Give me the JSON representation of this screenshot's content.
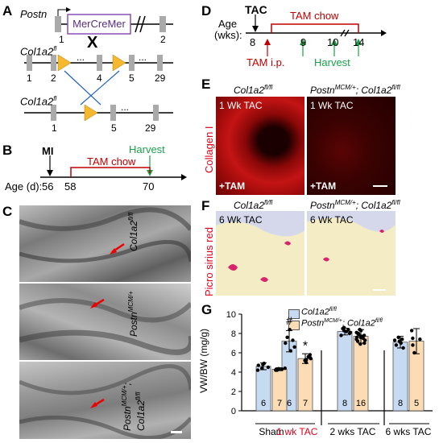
{
  "panels": {
    "A": {
      "label": "A",
      "gene_postn": "Postn",
      "cassette": "MerCreMer",
      "cross": "X",
      "allele1": "Col1a2",
      "allele1_sup": "fl",
      "allele2": "Col1a2",
      "allele2_sup": "fl",
      "exon_postn_1": "1",
      "exon_postn_2": "2",
      "exons_top": [
        "1",
        "2",
        "4",
        "5",
        "29"
      ],
      "exons_bottom": [
        "1",
        "5",
        "29"
      ],
      "dots": "..."
    },
    "B": {
      "label": "B",
      "mi": "MI",
      "harvest": "Harvest",
      "tam": "TAM chow",
      "age_label": "Age (d):",
      "days": [
        "56",
        "58",
        "70"
      ]
    },
    "C": {
      "label": "C",
      "rows": [
        {
          "g1": "Col1a2",
          "g1_sup": "fl/fl",
          "g2": "",
          "g2_sup": ""
        },
        {
          "g1": "Postn",
          "g1_sup": "MCM/+",
          "g2": "",
          "g2_sup": ""
        },
        {
          "g1": "Postn",
          "g1_sup": "MCM/+",
          "g2": "Col1a2",
          "g2_sup": "fl/fl"
        }
      ]
    },
    "D": {
      "label": "D",
      "tac": "TAC",
      "tam_chow": "TAM chow",
      "age_label": "Age",
      "age_unit": "(wks):",
      "weeks": [
        "8",
        "9",
        "10",
        "14"
      ],
      "tam_ip": "TAM i.p.",
      "harvest": "Harvest"
    },
    "E": {
      "label": "E",
      "col1_title": "Col1a2",
      "col1_sup": "fl/fl",
      "col2_title_a": "Postn",
      "col2_sup_a": "MCM/+",
      "col2_title_b": "; Col1a2",
      "col2_sup_b": "fl/fl",
      "side_label": "Collagen I",
      "timepoint": "1 Wk TAC",
      "treatment": "+TAM"
    },
    "F": {
      "label": "F",
      "col1_title": "Col1a2",
      "col1_sup": "fl/fl",
      "col2_title_a": "Postn",
      "col2_sup_a": "MCM/+",
      "col2_title_b": "; Col1a2",
      "col2_sup_b": "fl/fl",
      "side_label": "Picro sirius red",
      "timepoint": "6 Wk TAC"
    },
    "G": {
      "label": "G",
      "legend": [
        {
          "name": "Col1a2",
          "sup": "fl/fl",
          "color": "#c6daf2"
        },
        {
          "name": "Postn",
          "sup": "MCM/+",
          "name2": "; Col1a2",
          "sup2": "fl/fl",
          "color": "#fbdcb4"
        }
      ],
      "significance": [
        "#",
        "*"
      ]
    }
  },
  "chart_data": {
    "type": "bar",
    "ylabel": "VW/BW (mg/g)",
    "ylim": [
      0,
      10
    ],
    "yticks": [
      0,
      2,
      4,
      6,
      8,
      10
    ],
    "groups": [
      "Sham",
      "1 wk TAC",
      "2 wks TAC",
      "6 wks TAC"
    ],
    "group_colors": [
      "#000000",
      "#e2001a",
      "#000000",
      "#000000"
    ],
    "series": [
      {
        "name": "Col1a2 fl/fl",
        "color": "#c6daf2",
        "values": [
          4.6,
          7.2,
          8.2,
          7.1
        ],
        "errors": [
          0.35,
          1.1,
          0.35,
          0.6
        ],
        "n": [
          "6",
          "6",
          "8",
          "8"
        ]
      },
      {
        "name": "Postn MCM/+; Col1a2 fl/fl",
        "color": "#fbdcb4",
        "values": [
          4.3,
          5.4,
          7.7,
          7.2
        ],
        "errors": [
          0.15,
          0.5,
          0.7,
          1.3
        ],
        "n": [
          "7",
          "7",
          "16",
          "5"
        ]
      }
    ],
    "points": [
      [
        [
          4.2,
          4.5,
          4.7,
          4.9,
          4.4,
          4.8
        ],
        [
          6.2,
          7.0,
          7.6,
          8.4,
          6.6,
          7.3
        ],
        [
          7.8,
          8.1,
          8.4,
          8.6,
          8.0,
          8.3,
          8.2,
          8.5
        ],
        [
          6.5,
          7.0,
          7.4,
          7.2,
          6.8,
          7.6,
          7.1,
          7.3
        ]
      ],
      [
        [
          4.2,
          4.3,
          4.4,
          4.3,
          4.2,
          4.35,
          4.3
        ],
        [
          5.0,
          5.4,
          5.8,
          5.2,
          5.6,
          5.3,
          5.5
        ],
        [
          6.9,
          7.2,
          7.5,
          7.8,
          8.0,
          8.3,
          7.6,
          7.4,
          7.9,
          8.1,
          7.0,
          7.7,
          8.4,
          7.3,
          7.6,
          8.0
        ],
        [
          6.0,
          6.8,
          7.5,
          8.3,
          7.4
        ]
      ]
    ]
  }
}
